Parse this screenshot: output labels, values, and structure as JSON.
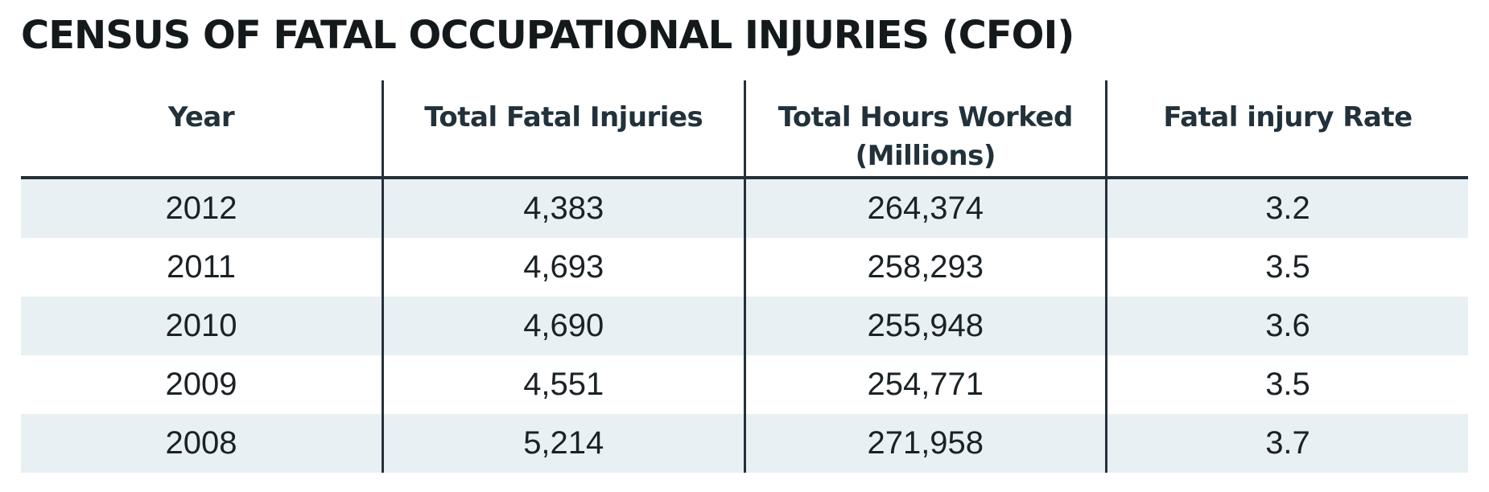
{
  "title": "CENSUS OF FATAL OCCUPATIONAL INJURIES (CFOI)",
  "colors": {
    "text": "#1b2226",
    "rule": "#25313a",
    "stripe": "#e8f0f4"
  },
  "table": {
    "headers": [
      {
        "line1": "Year",
        "line2": ""
      },
      {
        "line1": "Total Fatal Injuries",
        "line2": ""
      },
      {
        "line1": "Total Hours Worked",
        "line2": "(Millions)"
      },
      {
        "line1": "Fatal injury Rate",
        "line2": ""
      }
    ],
    "rows": [
      {
        "year": "2012",
        "total_fatal_injuries": "4,383",
        "total_hours_worked": "264,374",
        "fatal_injury_rate": "3.2"
      },
      {
        "year": "2011",
        "total_fatal_injuries": "4,693",
        "total_hours_worked": "258,293",
        "fatal_injury_rate": "3.5"
      },
      {
        "year": "2010",
        "total_fatal_injuries": "4,690",
        "total_hours_worked": "255,948",
        "fatal_injury_rate": "3.6"
      },
      {
        "year": "2009",
        "total_fatal_injuries": "4,551",
        "total_hours_worked": "254,771",
        "fatal_injury_rate": "3.5"
      },
      {
        "year": "2008",
        "total_fatal_injuries": "5,214",
        "total_hours_worked": "271,958",
        "fatal_injury_rate": "3.7"
      }
    ]
  }
}
